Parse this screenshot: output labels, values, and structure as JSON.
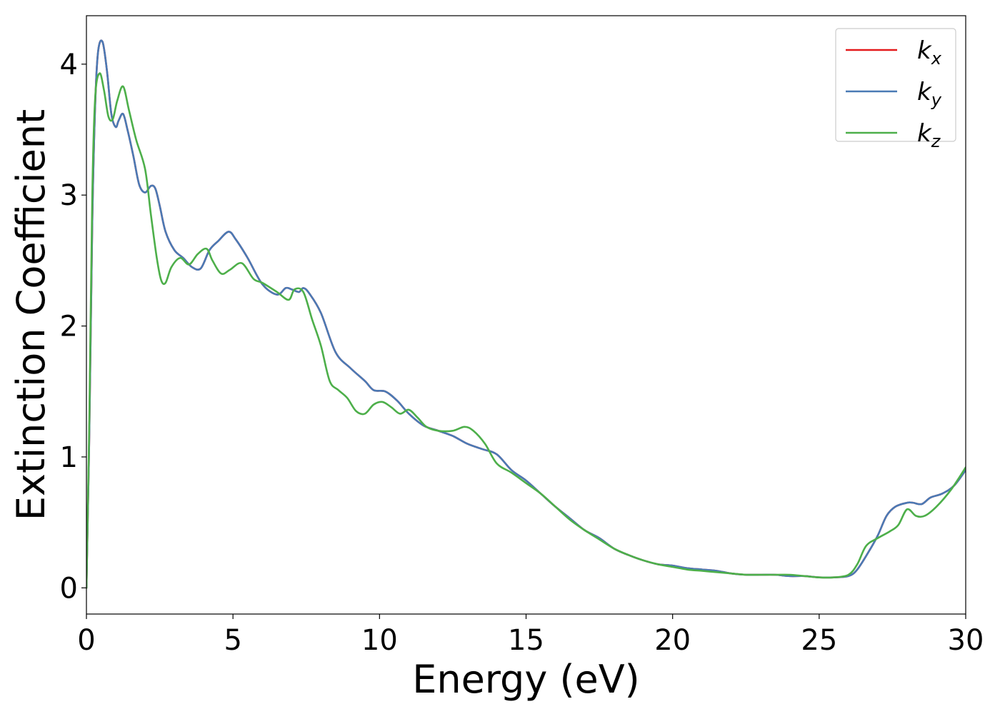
{
  "chart_data": {
    "type": "line",
    "xlabel": "Energy (eV)",
    "ylabel": "Extinction Coefficient",
    "xlim": [
      0,
      30
    ],
    "ylim": [
      -0.2,
      4.37
    ],
    "xticks": [
      0,
      5,
      10,
      15,
      20,
      25,
      30
    ],
    "xtick_labels": [
      "0",
      "5",
      "10",
      "15",
      "20",
      "25",
      "30"
    ],
    "yticks": [
      0,
      1,
      2,
      3,
      4
    ],
    "ytick_labels": [
      "0",
      "1",
      "2",
      "3",
      "4"
    ],
    "grid": false,
    "legend_position": "top-right",
    "series": [
      {
        "name": "k_x",
        "legend_base": "k",
        "legend_sub": "x",
        "color": "#e41a1c",
        "x": [
          0,
          0.1,
          0.2,
          0.3,
          0.4,
          0.55,
          0.7,
          0.85,
          1.0,
          1.1,
          1.25,
          1.4,
          1.6,
          1.8,
          2.0,
          2.2,
          2.35,
          2.5,
          2.7,
          3.0,
          3.3,
          3.6,
          3.9,
          4.2,
          4.5,
          4.85,
          5.1,
          5.5,
          6.0,
          6.5,
          6.8,
          7.0,
          7.25,
          7.4,
          7.6,
          8.0,
          8.5,
          9.0,
          9.5,
          9.8,
          10.2,
          10.6,
          11.0,
          11.5,
          12.0,
          12.5,
          13.0,
          13.5,
          14.0,
          14.5,
          15.0,
          15.5,
          16.0,
          16.5,
          17.0,
          17.5,
          18.0,
          18.5,
          19.0,
          19.5,
          20.0,
          20.5,
          21.0,
          21.5,
          22.0,
          22.5,
          23.0,
          23.5,
          24.0,
          24.5,
          25.0,
          25.5,
          26.0,
          26.3,
          26.7,
          27.0,
          27.3,
          27.6,
          28.0,
          28.2,
          28.5,
          28.8,
          29.2,
          29.6,
          30.0
        ],
        "y": [
          0.0,
          1.2,
          2.8,
          3.7,
          4.1,
          4.17,
          3.95,
          3.62,
          3.52,
          3.57,
          3.62,
          3.5,
          3.3,
          3.08,
          3.02,
          3.07,
          3.05,
          2.92,
          2.72,
          2.58,
          2.52,
          2.45,
          2.44,
          2.58,
          2.65,
          2.72,
          2.66,
          2.52,
          2.32,
          2.24,
          2.29,
          2.28,
          2.26,
          2.29,
          2.25,
          2.1,
          1.8,
          1.68,
          1.58,
          1.51,
          1.5,
          1.43,
          1.33,
          1.24,
          1.2,
          1.16,
          1.1,
          1.06,
          1.02,
          0.9,
          0.82,
          0.72,
          0.62,
          0.53,
          0.44,
          0.38,
          0.3,
          0.25,
          0.21,
          0.18,
          0.17,
          0.15,
          0.14,
          0.13,
          0.11,
          0.1,
          0.1,
          0.1,
          0.09,
          0.09,
          0.08,
          0.08,
          0.09,
          0.14,
          0.28,
          0.4,
          0.55,
          0.62,
          0.65,
          0.65,
          0.64,
          0.69,
          0.72,
          0.78,
          0.9
        ]
      },
      {
        "name": "k_y",
        "legend_base": "k",
        "legend_sub": "y",
        "color": "#4a7ab5",
        "x": [
          0,
          0.1,
          0.2,
          0.3,
          0.4,
          0.55,
          0.7,
          0.85,
          1.0,
          1.1,
          1.25,
          1.4,
          1.6,
          1.8,
          2.0,
          2.2,
          2.35,
          2.5,
          2.7,
          3.0,
          3.3,
          3.6,
          3.9,
          4.2,
          4.5,
          4.85,
          5.1,
          5.5,
          6.0,
          6.5,
          6.8,
          7.0,
          7.25,
          7.4,
          7.6,
          8.0,
          8.5,
          9.0,
          9.5,
          9.8,
          10.2,
          10.6,
          11.0,
          11.5,
          12.0,
          12.5,
          13.0,
          13.5,
          14.0,
          14.5,
          15.0,
          15.5,
          16.0,
          16.5,
          17.0,
          17.5,
          18.0,
          18.5,
          19.0,
          19.5,
          20.0,
          20.5,
          21.0,
          21.5,
          22.0,
          22.5,
          23.0,
          23.5,
          24.0,
          24.5,
          25.0,
          25.5,
          26.0,
          26.3,
          26.7,
          27.0,
          27.3,
          27.6,
          28.0,
          28.2,
          28.5,
          28.8,
          29.2,
          29.6,
          30.0
        ],
        "y": [
          0.0,
          1.2,
          2.8,
          3.7,
          4.1,
          4.17,
          3.95,
          3.62,
          3.52,
          3.57,
          3.62,
          3.5,
          3.3,
          3.08,
          3.02,
          3.07,
          3.05,
          2.92,
          2.72,
          2.58,
          2.52,
          2.45,
          2.44,
          2.58,
          2.65,
          2.72,
          2.66,
          2.52,
          2.32,
          2.24,
          2.29,
          2.28,
          2.26,
          2.29,
          2.25,
          2.1,
          1.8,
          1.68,
          1.58,
          1.51,
          1.5,
          1.43,
          1.33,
          1.24,
          1.2,
          1.16,
          1.1,
          1.06,
          1.02,
          0.9,
          0.82,
          0.72,
          0.62,
          0.53,
          0.44,
          0.38,
          0.3,
          0.25,
          0.21,
          0.18,
          0.17,
          0.15,
          0.14,
          0.13,
          0.11,
          0.1,
          0.1,
          0.1,
          0.09,
          0.09,
          0.08,
          0.08,
          0.09,
          0.14,
          0.28,
          0.4,
          0.55,
          0.62,
          0.65,
          0.65,
          0.64,
          0.69,
          0.72,
          0.78,
          0.9
        ]
      },
      {
        "name": "k_z",
        "legend_base": "k",
        "legend_sub": "z",
        "color": "#4daf4a",
        "x": [
          0,
          0.1,
          0.2,
          0.3,
          0.45,
          0.6,
          0.75,
          0.9,
          1.05,
          1.25,
          1.45,
          1.7,
          2.0,
          2.2,
          2.4,
          2.55,
          2.7,
          2.9,
          3.2,
          3.5,
          3.8,
          4.1,
          4.3,
          4.6,
          4.9,
          5.3,
          5.7,
          6.0,
          6.5,
          6.9,
          7.1,
          7.4,
          7.7,
          8.0,
          8.3,
          8.6,
          8.9,
          9.2,
          9.5,
          9.8,
          10.1,
          10.4,
          10.7,
          11.0,
          11.3,
          11.6,
          12.0,
          12.5,
          12.9,
          13.2,
          13.6,
          14.0,
          14.5,
          15.0,
          15.5,
          16.0,
          16.5,
          17.0,
          17.5,
          18.0,
          18.5,
          19.0,
          19.5,
          20.0,
          20.5,
          21.0,
          21.5,
          22.0,
          22.5,
          23.0,
          23.5,
          24.0,
          24.5,
          25.0,
          25.5,
          26.0,
          26.3,
          26.6,
          27.0,
          27.4,
          27.7,
          28.0,
          28.3,
          28.6,
          29.0,
          29.5,
          30.0
        ],
        "y": [
          0.0,
          1.3,
          3.0,
          3.75,
          3.93,
          3.8,
          3.6,
          3.58,
          3.72,
          3.83,
          3.65,
          3.42,
          3.2,
          2.85,
          2.52,
          2.35,
          2.33,
          2.45,
          2.52,
          2.47,
          2.55,
          2.59,
          2.5,
          2.4,
          2.43,
          2.48,
          2.36,
          2.33,
          2.26,
          2.2,
          2.28,
          2.26,
          2.05,
          1.85,
          1.58,
          1.51,
          1.45,
          1.35,
          1.33,
          1.4,
          1.42,
          1.38,
          1.33,
          1.36,
          1.3,
          1.23,
          1.2,
          1.2,
          1.23,
          1.2,
          1.1,
          0.95,
          0.88,
          0.8,
          0.72,
          0.62,
          0.52,
          0.44,
          0.37,
          0.3,
          0.25,
          0.21,
          0.18,
          0.16,
          0.14,
          0.13,
          0.12,
          0.11,
          0.1,
          0.1,
          0.1,
          0.1,
          0.09,
          0.08,
          0.08,
          0.1,
          0.18,
          0.32,
          0.38,
          0.43,
          0.48,
          0.6,
          0.55,
          0.55,
          0.62,
          0.75,
          0.92
        ]
      }
    ]
  }
}
